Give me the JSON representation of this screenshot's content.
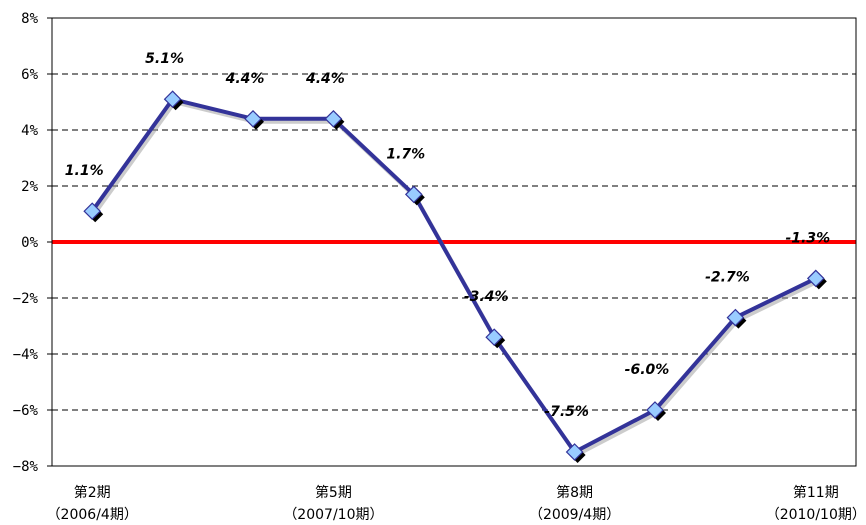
{
  "chart_data": {
    "type": "line",
    "title": "",
    "xlabel": "",
    "ylabel": "",
    "ylim": [
      -8,
      8
    ],
    "y_tick_step": 2,
    "y_tick_suffix": "%",
    "grid": "horizontal dashed",
    "x": [
      2,
      3,
      4,
      5,
      6,
      7,
      8,
      9,
      10,
      11
    ],
    "x_tick_labels": [
      {
        "x": 2,
        "line1": "第2期",
        "line2": "（2006/4期）"
      },
      {
        "x": 5,
        "line1": "第5期",
        "line2": "（2007/10期）"
      },
      {
        "x": 8,
        "line1": "第8期",
        "line2": "（2009/4期）"
      },
      {
        "x": 11,
        "line1": "第11期",
        "line2": "（2010/10期）"
      }
    ],
    "series": [
      {
        "values": [
          1.1,
          5.1,
          4.4,
          4.4,
          1.7,
          -3.4,
          -7.5,
          -6.0,
          -2.7,
          -1.3
        ],
        "data_labels": [
          "1.1%",
          "5.1%",
          "4.4%",
          "4.4%",
          "1.7%",
          "-3.4%",
          "-7.5%",
          "-6.0%",
          "-2.7%",
          "-1.3%"
        ]
      }
    ],
    "reference_line": {
      "y": 0
    },
    "colors": {
      "line": "#333399",
      "marker_fill": "#99ccff",
      "marker_edge": "#333399",
      "marker_shadow": "#000000",
      "zero_line": "#ff0000",
      "grid": "#000000",
      "axis": "#000000"
    }
  }
}
